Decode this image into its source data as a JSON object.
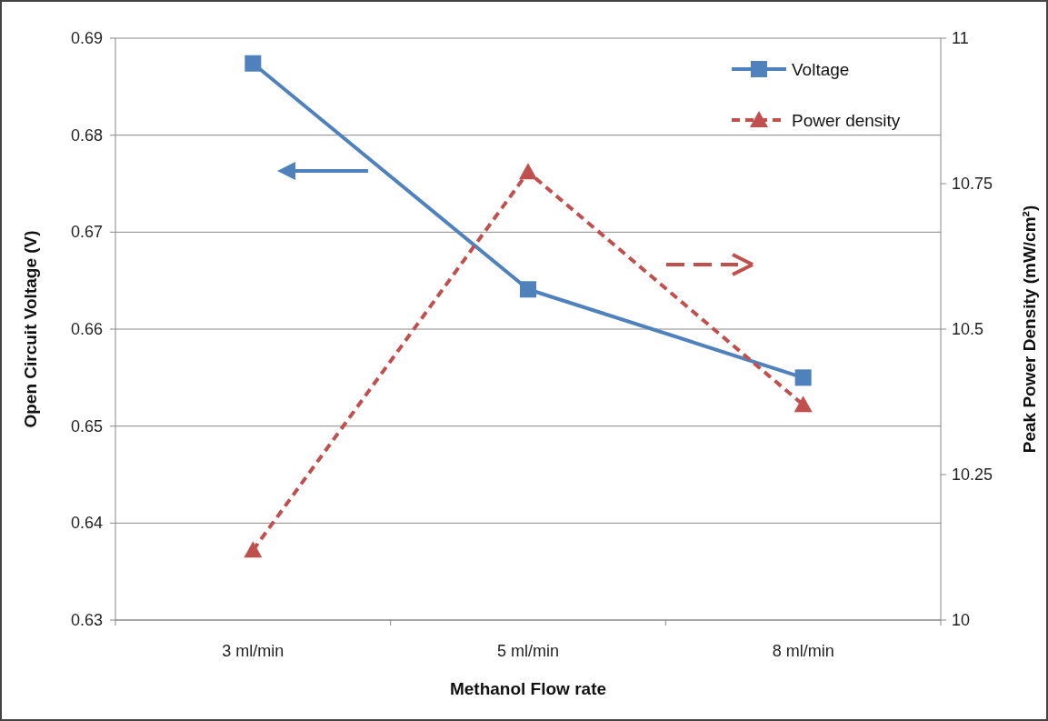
{
  "chart_data": {
    "type": "line",
    "xlabel": "Methanol Flow rate",
    "ylabel": "Open Circuit Voltage (V)",
    "y2label": "Peak Power Density (mW/cm²)",
    "categories": [
      "3 ml/min",
      "5 ml/min",
      "8 ml/min"
    ],
    "series": [
      {
        "name": "Voltage",
        "color": "#4f81bd",
        "values": [
          0.6874,
          0.6641,
          0.655
        ],
        "marker": "square",
        "line_style": "solid"
      },
      {
        "name": "Power density",
        "color": "#c0504d",
        "values": [
          10.12,
          10.77,
          10.37
        ],
        "marker": "triangle",
        "line_style": "dashed",
        "axis": "y2"
      }
    ],
    "ylim": [
      0.63,
      0.69
    ],
    "yticks": [
      0.63,
      0.64,
      0.65,
      0.66,
      0.67,
      0.68,
      0.69
    ],
    "y2lim": [
      10,
      11
    ],
    "y2ticks": [
      10,
      10.25,
      10.5,
      10.75,
      11
    ],
    "grid": "y",
    "legend": "top right"
  }
}
